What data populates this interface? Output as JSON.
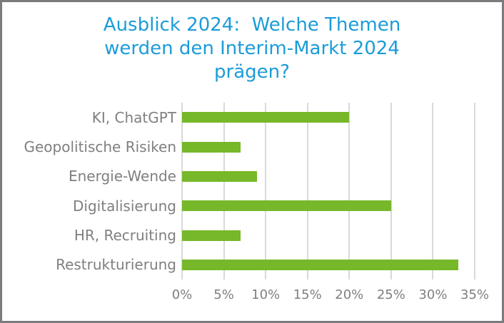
{
  "window": {
    "border_color": "#7b7b7e",
    "background": "#ffffff"
  },
  "chart_data": {
    "type": "bar",
    "orientation": "horizontal",
    "title": "Ausblick 2024:  Welche Themen werden den Interim-Markt 2024 prägen?",
    "title_lines": [
      "Ausblick 2024:  Welche Themen",
      "werden den Interim-Markt 2024",
      "prägen?"
    ],
    "categories": [
      "KI, ChatGPT",
      "Geopolitische Risiken",
      "Energie-Wende",
      "Digitalisierung",
      "HR, Recruiting",
      "Restrukturierung"
    ],
    "values": [
      20,
      7,
      9,
      25,
      7,
      33
    ],
    "value_unit": "%",
    "xlabel": "",
    "ylabel": "",
    "xlim": [
      0,
      35
    ],
    "x_tick_values": [
      0,
      5,
      10,
      15,
      20,
      25,
      30,
      35
    ],
    "x_ticks": [
      "0%",
      "5%",
      "10%",
      "15%",
      "20%",
      "25%",
      "30%",
      "35%"
    ],
    "grid": "vertical",
    "legend": "none",
    "colors": {
      "bar": "#76b82a",
      "title": "#1b9cd8",
      "labels": "#7f7f7f",
      "gridline": "#d9d9d9"
    }
  }
}
